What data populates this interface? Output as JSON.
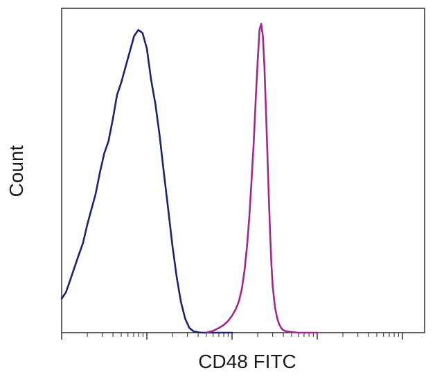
{
  "chart_data": {
    "type": "line",
    "title": "",
    "xlabel": "CD48 FITC",
    "ylabel": "Count",
    "x_scale": "log",
    "xlim": [
      1,
      10000
    ],
    "ylim": [
      0,
      1.05
    ],
    "grid": false,
    "legend": "none",
    "series": [
      {
        "color": "#1d2270",
        "x": [
          1.0,
          1.12,
          1.26,
          1.41,
          1.58,
          1.78,
          2.0,
          2.24,
          2.51,
          2.82,
          3.16,
          3.55,
          3.98,
          4.47,
          5.01,
          5.62,
          6.31,
          7.08,
          7.94,
          8.91,
          10.0,
          11.2,
          12.6,
          14.1,
          15.8,
          17.8,
          20.0,
          22.4,
          25.1,
          28.2,
          31.6,
          35.5,
          39.8,
          44.7,
          50.1,
          56.2,
          63.1,
          70.8,
          79.4,
          89.1,
          100
        ],
        "values": [
          0.11,
          0.13,
          0.17,
          0.21,
          0.25,
          0.29,
          0.35,
          0.4,
          0.45,
          0.52,
          0.58,
          0.62,
          0.69,
          0.77,
          0.81,
          0.86,
          0.91,
          0.96,
          0.98,
          0.97,
          0.92,
          0.82,
          0.74,
          0.64,
          0.52,
          0.4,
          0.28,
          0.18,
          0.1,
          0.045,
          0.015,
          0.004,
          0.001,
          0.0,
          0.0,
          0.0,
          0.0,
          0.0,
          0.0,
          0.0,
          0.0
        ]
      },
      {
        "color": "#a1278a",
        "x": [
          50,
          60,
          70,
          80,
          90,
          100,
          110,
          120,
          130,
          140,
          150,
          160,
          170,
          180,
          190,
          200,
          210,
          220,
          230,
          240,
          250,
          260,
          270,
          280,
          290,
          300,
          320,
          340,
          360,
          380,
          400,
          440,
          500,
          600,
          800,
          1000
        ],
        "values": [
          0.0,
          0.006,
          0.015,
          0.025,
          0.038,
          0.055,
          0.075,
          0.1,
          0.14,
          0.2,
          0.28,
          0.38,
          0.5,
          0.62,
          0.76,
          0.88,
          0.98,
          1.0,
          0.96,
          0.86,
          0.72,
          0.58,
          0.44,
          0.32,
          0.22,
          0.15,
          0.08,
          0.045,
          0.025,
          0.014,
          0.008,
          0.004,
          0.002,
          0.0,
          0.0,
          0.0
        ]
      }
    ]
  }
}
